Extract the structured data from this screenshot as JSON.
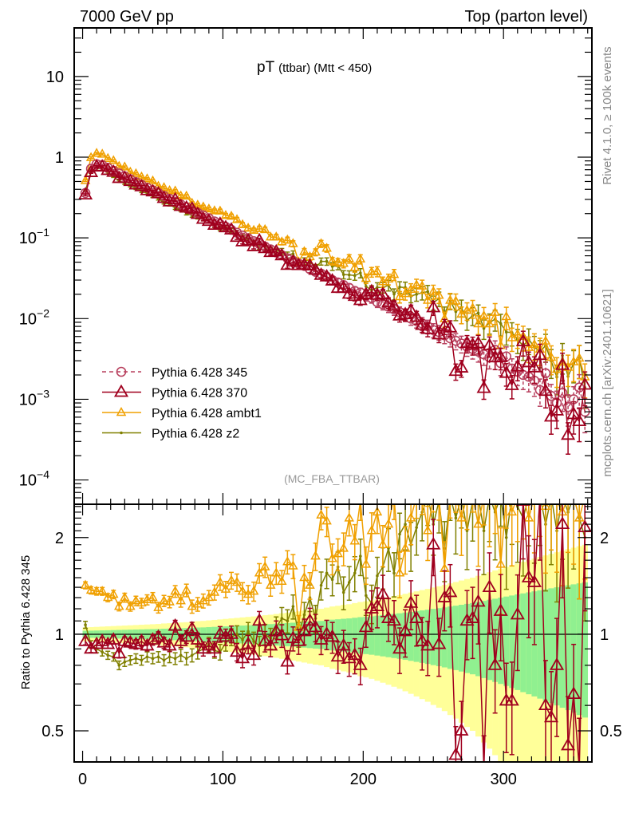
{
  "header": {
    "left": "7000 GeV pp",
    "right": "Top (parton level)",
    "side_rivet": "Rivet 4.1.0, ≥ 100k events",
    "side_site": "mcplots.cern.ch [arXiv:2401.10621]",
    "analysis": "(MC_FBA_TTBAR)"
  },
  "chart_data": {
    "type": "line",
    "title_main": "pT",
    "title_sub": "(ttbar) (Mtt < 450)",
    "xlabel": "",
    "ylabel_main": "",
    "ylabel_ratio": "Ratio to Pythia 6.428 345",
    "xlim": [
      -6,
      363
    ],
    "ylim_main": [
      5e-05,
      40
    ],
    "ylim_ratio": [
      0.4,
      2.54
    ],
    "yscale_main": "log",
    "yscale_ratio": "log",
    "x_ticks": [
      "0",
      "100",
      "200",
      "300"
    ],
    "y_ticks_main": [
      {
        "base": "10",
        "exp": ""
      },
      {
        "base": "1",
        "exp": ""
      },
      {
        "base": "10",
        "exp": "−1"
      },
      {
        "base": "10",
        "exp": "−2"
      },
      {
        "base": "10",
        "exp": "−3"
      },
      {
        "base": "10",
        "exp": "−4"
      }
    ],
    "y_ticks_ratio": [
      "2",
      "1",
      "0.5"
    ],
    "legend_position": "lower-left",
    "bin_width": 4,
    "x_first": 2,
    "reference": "Pythia 6.428 345",
    "reference_values": [
      0.36,
      0.72,
      0.82,
      0.8,
      0.74,
      0.68,
      0.63,
      0.58,
      0.535,
      0.49,
      0.455,
      0.42,
      0.39,
      0.36,
      0.33,
      0.305,
      0.28,
      0.26,
      0.24,
      0.22,
      0.205,
      0.19,
      0.175,
      0.16,
      0.148,
      0.137,
      0.126,
      0.116,
      0.107,
      0.099,
      0.091,
      0.084,
      0.078,
      0.072,
      0.066,
      0.061,
      0.056,
      0.052,
      0.048,
      0.045,
      0.041,
      0.038,
      0.036,
      0.033,
      0.03,
      0.028,
      0.026,
      0.024,
      0.022,
      0.021,
      0.019,
      0.018,
      0.016,
      0.015,
      0.014,
      0.013,
      0.012,
      0.011,
      0.01,
      0.0093,
      0.0087,
      0.008,
      0.0072,
      0.0068,
      0.0062,
      0.0057,
      0.0053,
      0.0049,
      0.0045,
      0.0042,
      0.0039,
      0.0036,
      0.0033,
      0.0041,
      0.0028,
      0.0034,
      0.0024,
      0.0022,
      0.002,
      0.0019,
      0.0017,
      0.0013,
      0.0021,
      0.0011,
      0.0009,
      0.0012,
      0.0008,
      0.001,
      0.0014,
      0.0007
    ],
    "reference_rel_err": [
      0.025,
      0.026,
      0.027,
      0.028,
      0.029,
      0.03,
      0.031,
      0.032,
      0.033,
      0.034,
      0.035,
      0.036,
      0.037,
      0.038,
      0.04,
      0.041,
      0.042,
      0.044,
      0.045,
      0.047,
      0.049,
      0.05,
      0.052,
      0.054,
      0.056,
      0.058,
      0.06,
      0.062,
      0.064,
      0.066,
      0.068,
      0.07,
      0.073,
      0.075,
      0.078,
      0.081,
      0.083,
      0.086,
      0.089,
      0.092,
      0.095,
      0.098,
      0.1,
      0.105,
      0.11,
      0.113,
      0.117,
      0.12,
      0.125,
      0.13,
      0.133,
      0.137,
      0.142,
      0.147,
      0.152,
      0.157,
      0.162,
      0.168,
      0.174,
      0.18,
      0.186,
      0.192,
      0.199,
      0.205,
      0.212,
      0.22,
      0.227,
      0.235,
      0.243,
      0.25,
      0.26,
      0.27,
      0.28,
      0.29,
      0.3,
      0.31,
      0.32,
      0.33,
      0.34,
      0.35,
      0.36,
      0.37,
      0.38,
      0.39,
      0.4,
      0.41,
      0.42,
      0.43,
      0.44,
      0.45
    ],
    "series": [
      {
        "name": "Pythia 6.428 345",
        "color": "#b8405e",
        "marker": "circle",
        "dash": true,
        "ratio": null
      },
      {
        "name": "Pythia 6.428 370",
        "color": "#a0001e",
        "marker": "triangle",
        "dash": false,
        "ratio": [
          0.95,
          0.9,
          0.93,
          0.95,
          0.93,
          0.96,
          0.87,
          0.95,
          0.94,
          0.93,
          0.95,
          0.92,
          0.96,
          0.98,
          0.94,
          0.92,
          1.06,
          0.95,
          0.98,
          1.04,
          0.96,
          0.9,
          0.92,
          0.9,
          1.0,
          0.98,
          1.0,
          0.88,
          0.84,
          0.93,
          0.86,
          1.1,
          0.95,
          0.92,
          1.02,
          0.99,
          0.82,
          0.97,
          0.95,
          1.02,
          1.1,
          1.05,
          0.96,
          1.0,
          0.98,
          0.85,
          0.92,
          0.84,
          0.86,
          0.8,
          1.05,
          1.2,
          1.22,
          1.33,
          1.12,
          1.1,
          0.9,
          1.02,
          1.25,
          1.12,
          0.95,
          0.92,
          1.9,
          0.93,
          1.3,
          1.35,
          0.42,
          0.5,
          1.1,
          1.12,
          1.26,
          0.38,
          1.4,
          0.8,
          1.18,
          0.62,
          0.62,
          1.15,
          2.6,
          1.5,
          1.45,
          2.7,
          0.6,
          0.55,
          0.8,
          2.2,
          0.45,
          0.65,
          0.38,
          2.15
        ]
      },
      {
        "name": "Pythia 6.428 ambt1",
        "color": "#f0a000",
        "marker": "small-triangle",
        "dash": false,
        "ratio": [
          1.42,
          1.37,
          1.36,
          1.36,
          1.3,
          1.33,
          1.22,
          1.3,
          1.22,
          1.27,
          1.25,
          1.28,
          1.3,
          1.21,
          1.27,
          1.26,
          1.36,
          1.27,
          1.37,
          1.22,
          1.24,
          1.27,
          1.3,
          1.35,
          1.45,
          1.38,
          1.47,
          1.45,
          1.36,
          1.33,
          1.36,
          1.55,
          1.62,
          1.42,
          1.55,
          1.46,
          1.68,
          1.63,
          1.05,
          1.5,
          1.42,
          1.75,
          2.35,
          2.25,
          1.72,
          1.78,
          1.85,
          2.3,
          1.95,
          2.6,
          1.65,
          2.1,
          2.4,
          1.9,
          2.2,
          2.7,
          1.55,
          1.85,
          2.3,
          2.8,
          2.9,
          2.1,
          3.0,
          2.85,
          1.6,
          2.95,
          3.1,
          2.3,
          2.8,
          3.2,
          2.2,
          3.0,
          2.6,
          2.9,
          1.65,
          3.1,
          2.4,
          2.9,
          3.0,
          2.3,
          2.8,
          3.2,
          2.5,
          3.0,
          2.6,
          2.4,
          3.1,
          2.9,
          2.3,
          2.7
        ]
      },
      {
        "name": "Pythia 6.428 z2",
        "color": "#808000",
        "marker": "dot",
        "dash": false,
        "ratio": [
          1.07,
          0.93,
          0.9,
          0.88,
          0.86,
          0.85,
          0.8,
          0.82,
          0.83,
          0.84,
          0.83,
          0.85,
          0.84,
          0.85,
          0.83,
          0.85,
          0.84,
          0.86,
          0.84,
          0.86,
          0.88,
          0.9,
          0.93,
          0.89,
          0.88,
          0.94,
          0.98,
          1.0,
          0.96,
          1.02,
          0.95,
          0.92,
          1.0,
          0.97,
          1.05,
          1.12,
          1.1,
          1.22,
          1.0,
          1.15,
          1.3,
          1.12,
          1.42,
          1.55,
          1.48,
          1.62,
          1.35,
          1.45,
          1.55,
          1.75,
          1.32,
          1.25,
          1.52,
          1.62,
          1.85,
          1.55,
          2.05,
          2.2,
          1.9,
          2.15,
          2.4,
          2.7,
          2.2,
          2.6,
          1.85,
          2.9,
          2.3,
          2.8,
          2.1,
          2.6,
          3.0,
          2.1,
          2.7,
          2.4,
          3.1,
          2.0,
          2.8,
          2.5,
          2.3,
          2.9,
          2.6,
          3.0,
          2.2,
          2.7,
          2.1,
          2.9,
          2.4,
          2.8,
          2.3,
          2.0
        ]
      }
    ],
    "band_colors": {
      "inner": "#90f090",
      "outer": "#ffff99"
    }
  }
}
